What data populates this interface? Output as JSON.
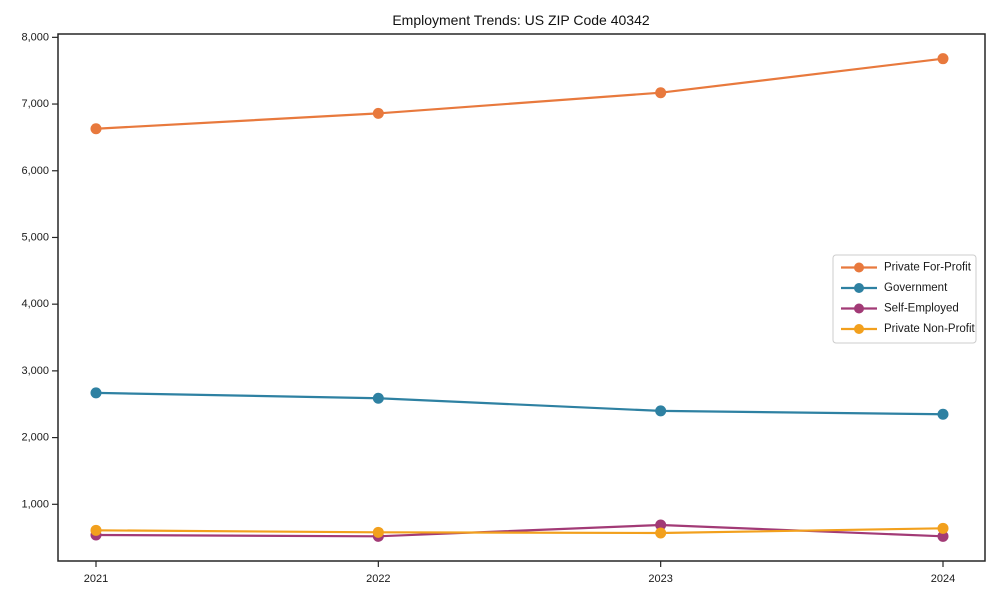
{
  "page": {
    "background_color": "#ffffff"
  },
  "chart_data": {
    "type": "line",
    "title": "Employment Trends: US ZIP Code 40342",
    "xlabel": "",
    "ylabel": "",
    "x_tick_labels": [
      "2021",
      "2022",
      "2023",
      "2024"
    ],
    "x_values": [
      2021,
      2022,
      2023,
      2024
    ],
    "y_ticks": [
      1000,
      2000,
      3000,
      4000,
      5000,
      6000,
      7000,
      8000
    ],
    "y_tick_labels": [
      "1,000",
      "2,000",
      "3,000",
      "4,000",
      "5,000",
      "6,000",
      "7,000",
      "8,000"
    ],
    "ylim": [
      150,
      8050
    ],
    "grid": false,
    "legend_position": "middle-right",
    "axis_color": "#262626",
    "text_color": "#1a1a1a",
    "legend_border_color": "#cccccc",
    "legend_background": "#ffffff",
    "series": [
      {
        "name": "Private For-Profit",
        "color": "#E8793D",
        "values": [
          6630,
          6860,
          7170,
          7680
        ]
      },
      {
        "name": "Government",
        "color": "#2E81A2",
        "values": [
          2670,
          2590,
          2400,
          2350
        ]
      },
      {
        "name": "Self-Employed",
        "color": "#A23A76",
        "values": [
          540,
          520,
          690,
          520
        ]
      },
      {
        "name": "Private Non-Profit",
        "color": "#F2A01D",
        "values": [
          610,
          580,
          570,
          640
        ]
      }
    ]
  }
}
